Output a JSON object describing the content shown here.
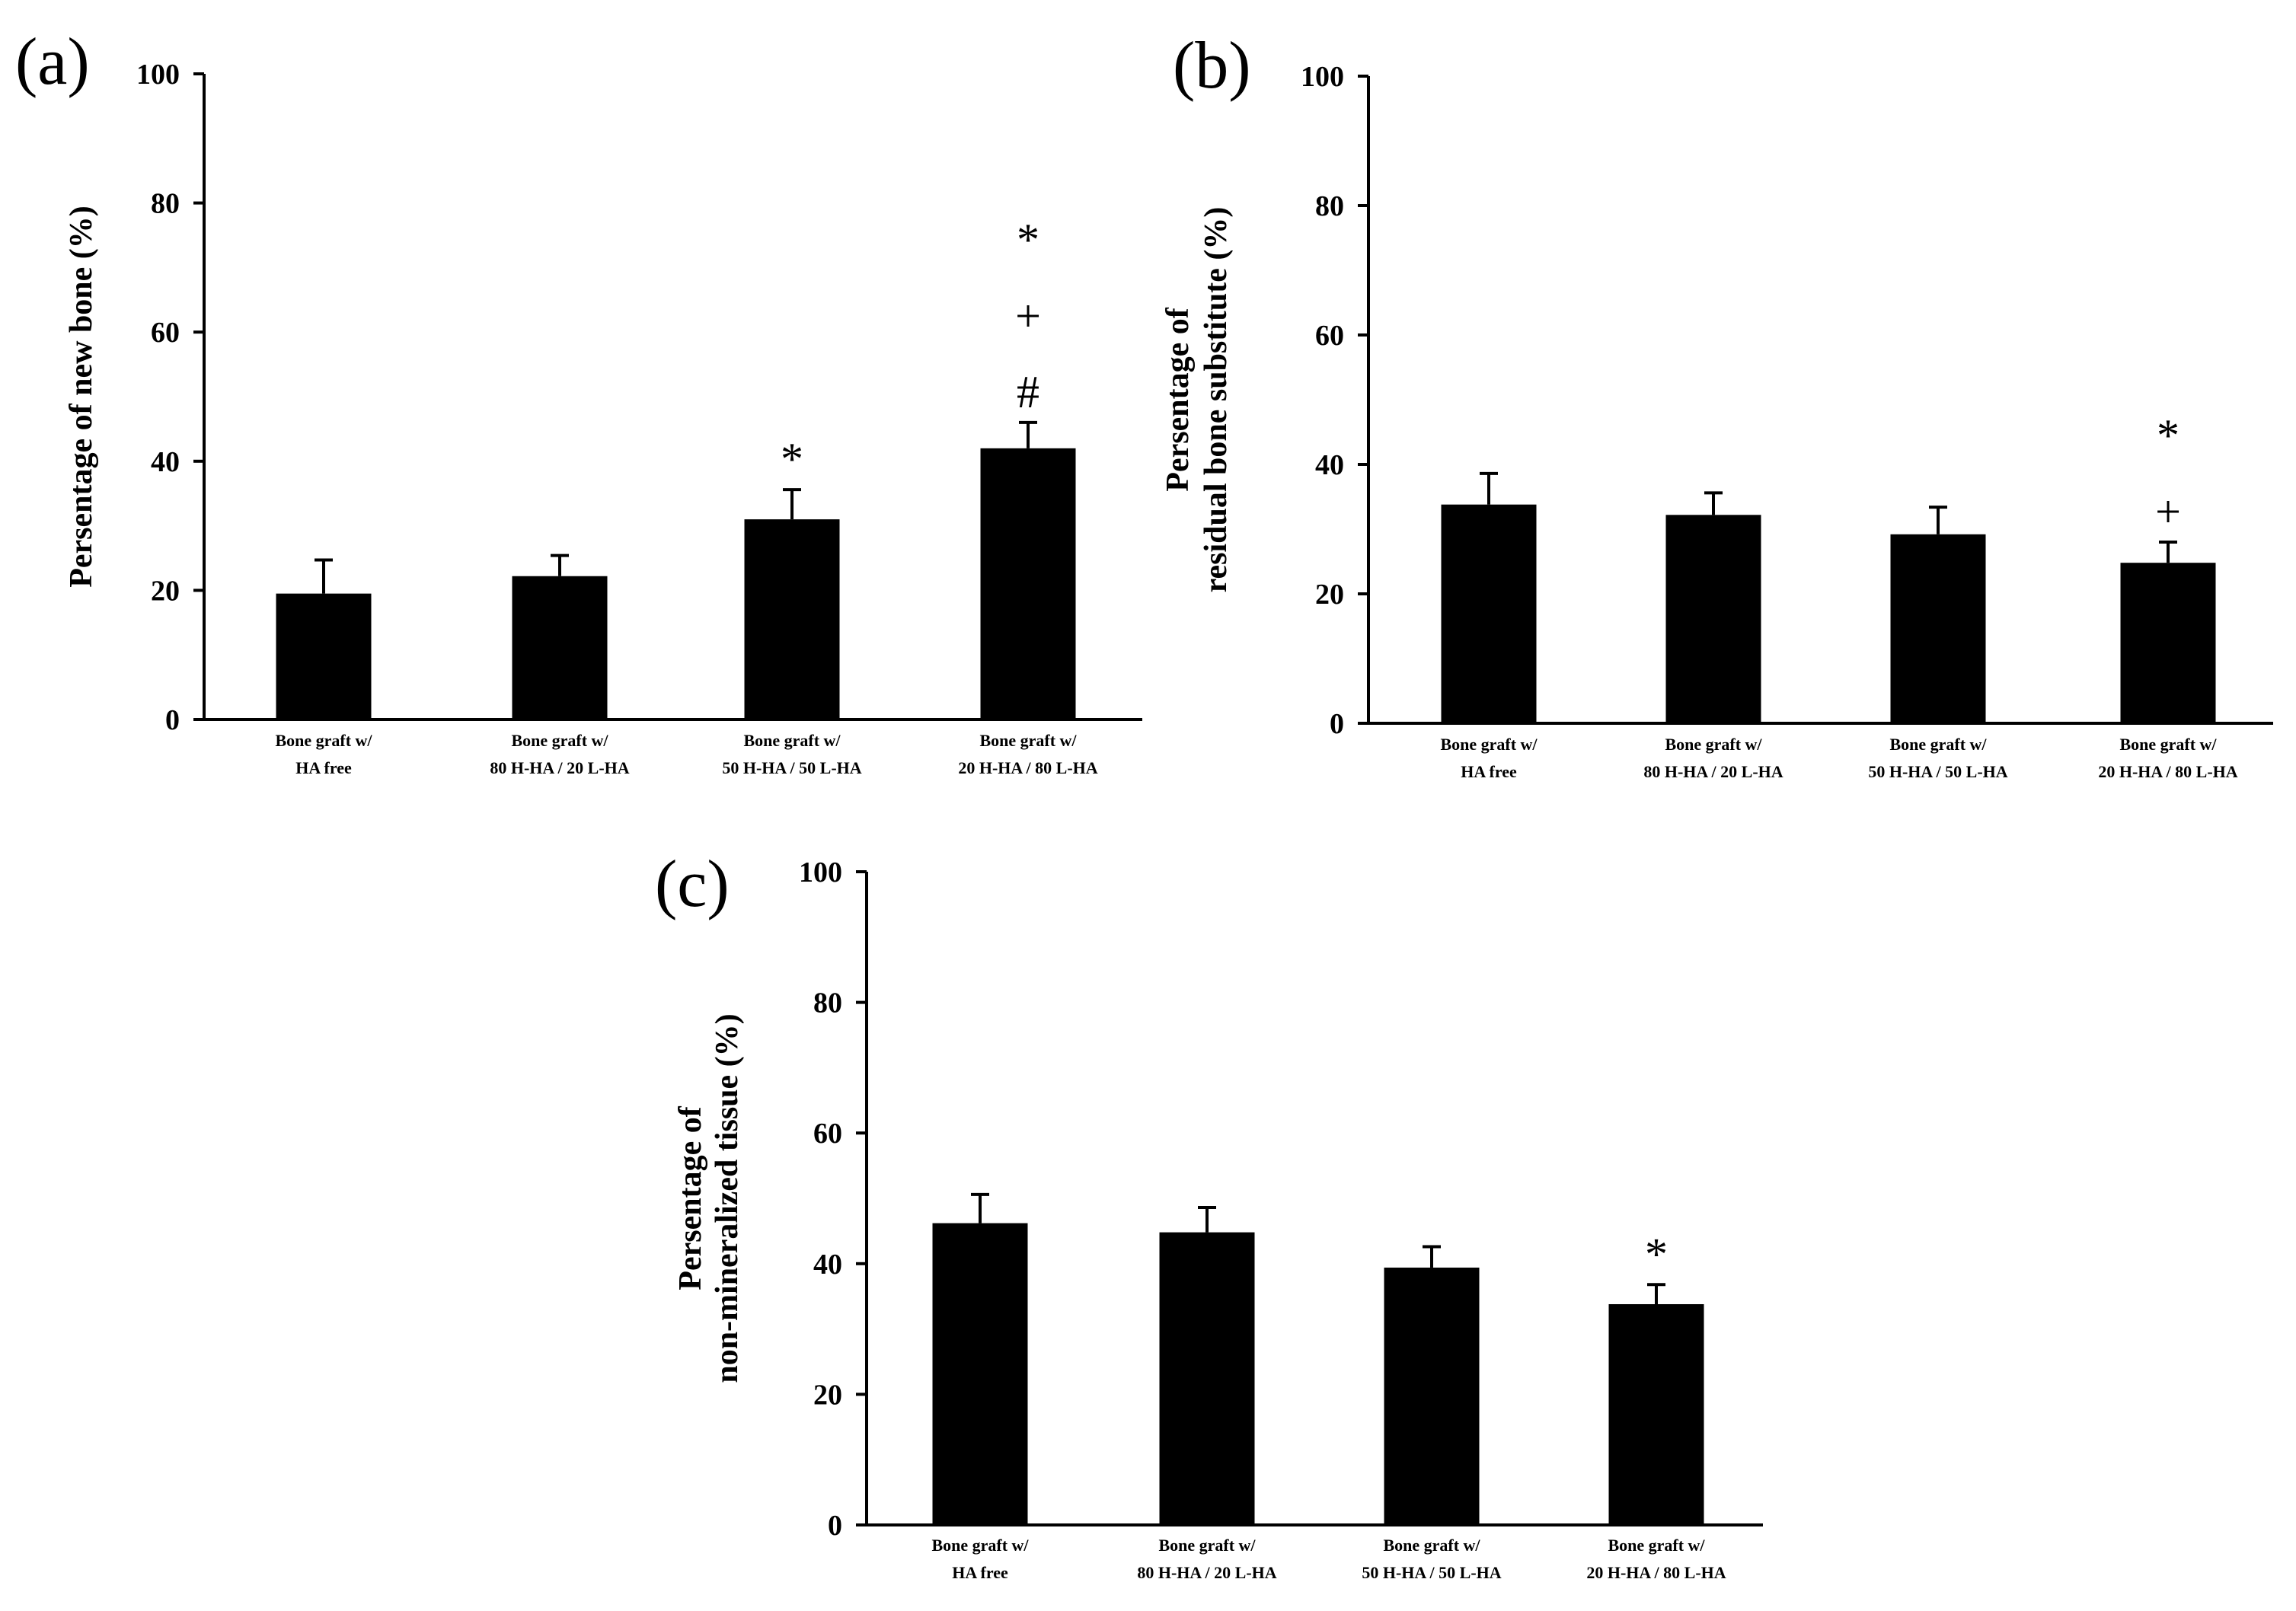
{
  "chart_data": [
    {
      "id": "a",
      "type": "bar",
      "panel_label": "(a)",
      "ylabel": "Persentage of new bone (%)",
      "ylabel_lines": [
        "Persentage of new bone (%)"
      ],
      "ylim": [
        0,
        100
      ],
      "yticks": [
        "0",
        "20",
        "40",
        "60",
        "80",
        "100"
      ],
      "categories": [
        [
          "Bone graft w/",
          "HA free"
        ],
        [
          "Bone graft w/",
          "80 H-HA / 20 L-HA"
        ],
        [
          "Bone graft w/",
          "50 H-HA / 50 L-HA"
        ],
        [
          "Bone graft w/",
          "20 H-HA / 80 L-HA"
        ]
      ],
      "values": [
        19.5,
        22.2,
        31.0,
        42.0
      ],
      "errors": [
        5.2,
        3.2,
        4.6,
        4.0
      ],
      "annotations": [
        [],
        [],
        [
          "*"
        ],
        [
          "#",
          "+",
          "*"
        ]
      ]
    },
    {
      "id": "b",
      "type": "bar",
      "panel_label": "(b)",
      "ylabel": "Persentage of residual bone substitute (%)",
      "ylabel_lines": [
        "Persentage of",
        "residual bone substitute (%)"
      ],
      "ylim": [
        0,
        100
      ],
      "yticks": [
        "0",
        "20",
        "40",
        "60",
        "80",
        "100"
      ],
      "categories": [
        [
          "Bone graft w/",
          "HA free"
        ],
        [
          "Bone graft w/",
          "80 H-HA / 20 L-HA"
        ],
        [
          "Bone graft w/",
          "50 H-HA / 50 L-HA"
        ],
        [
          "Bone graft w/",
          "20 H-HA / 80 L-HA"
        ]
      ],
      "values": [
        33.8,
        32.2,
        29.2,
        24.8
      ],
      "errors": [
        4.8,
        3.4,
        4.2,
        3.2
      ],
      "annotations": [
        [],
        [],
        [],
        [
          "+",
          "*"
        ]
      ]
    },
    {
      "id": "c",
      "type": "bar",
      "panel_label": "(c)",
      "ylabel": "Persentage of non-mineralized tissue (%)",
      "ylabel_lines": [
        "Persentage of",
        "non-mineralized tissue (%)"
      ],
      "ylim": [
        0,
        100
      ],
      "yticks": [
        "0",
        "20",
        "40",
        "60",
        "80",
        "100"
      ],
      "categories": [
        [
          "Bone graft w/",
          "HA free"
        ],
        [
          "Bone graft w/",
          "80 H-HA / 20 L-HA"
        ],
        [
          "Bone graft w/",
          "50 H-HA / 50 L-HA"
        ],
        [
          "Bone graft w/",
          "20 H-HA / 80 L-HA"
        ]
      ],
      "values": [
        46.2,
        44.8,
        39.4,
        33.8
      ],
      "errors": [
        4.4,
        3.8,
        3.2,
        3.0
      ],
      "annotations": [
        [],
        [],
        [],
        [
          "*"
        ]
      ]
    }
  ],
  "colors": {
    "bar": "#000000",
    "axis": "#000000",
    "background": "#ffffff"
  }
}
